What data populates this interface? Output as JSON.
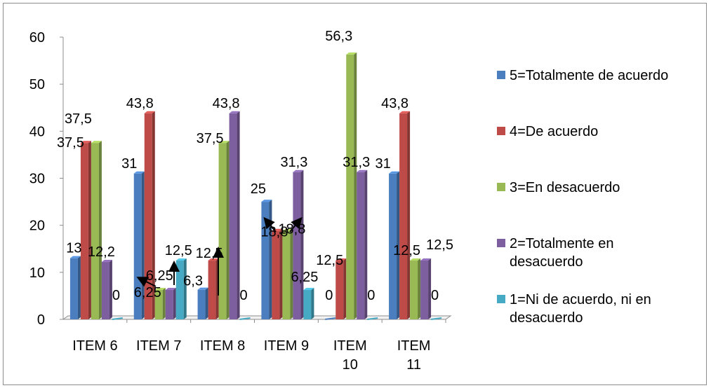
{
  "chart_data": {
    "type": "bar",
    "title": "",
    "xlabel": "",
    "ylabel": "",
    "ylim": [
      0,
      60
    ],
    "y_ticks": [
      "0",
      "10",
      "20",
      "30",
      "40",
      "50",
      "60"
    ],
    "categories": [
      [
        "ITEM 6"
      ],
      [
        "ITEM 7"
      ],
      [
        "ITEM 8"
      ],
      [
        "ITEM 9"
      ],
      [
        "ITEM",
        "10"
      ],
      [
        "ITEM",
        "11"
      ]
    ],
    "series": [
      {
        "name": "5=Totalmente de acuerdo",
        "color": "#4a7ebf",
        "values": [
          13,
          31,
          6.3,
          25,
          0,
          31
        ],
        "labels": [
          "13",
          "31",
          "6,3",
          "25",
          "0",
          "31"
        ]
      },
      {
        "name": "4=De acuerdo",
        "color": "#be4b48",
        "values": [
          37.5,
          43.8,
          12.5,
          18.8,
          12.5,
          43.8
        ],
        "labels": [
          "37,5",
          "43,8",
          "12,5",
          "18,8",
          "12,5",
          "43,8"
        ]
      },
      {
        "name": "3=En desacuerdo",
        "color": "#98b954",
        "values": [
          37.5,
          6.25,
          37.5,
          18.8,
          56.3,
          12.5
        ],
        "labels": [
          "37,5",
          "6,25",
          "37,5",
          "18,8",
          "56,3",
          "12,5"
        ]
      },
      {
        "name": "2=Totalmente en desacuerdo",
        "color": "#7d5fa0",
        "values": [
          12.2,
          6.25,
          43.8,
          31.3,
          31.3,
          12.5
        ],
        "labels": [
          "12,2",
          "6,25",
          "43,8",
          "31,3",
          "31,3",
          "12,5"
        ]
      },
      {
        "name": "1=Ni de acuerdo, ni en desacuerdo",
        "color": "#46aac5",
        "values": [
          0,
          12.5,
          0,
          6.25,
          0,
          0
        ],
        "labels": [
          "0",
          "12,5",
          "0",
          "6,25",
          "0",
          "0"
        ]
      }
    ],
    "legend_position": "right",
    "grid": false
  }
}
